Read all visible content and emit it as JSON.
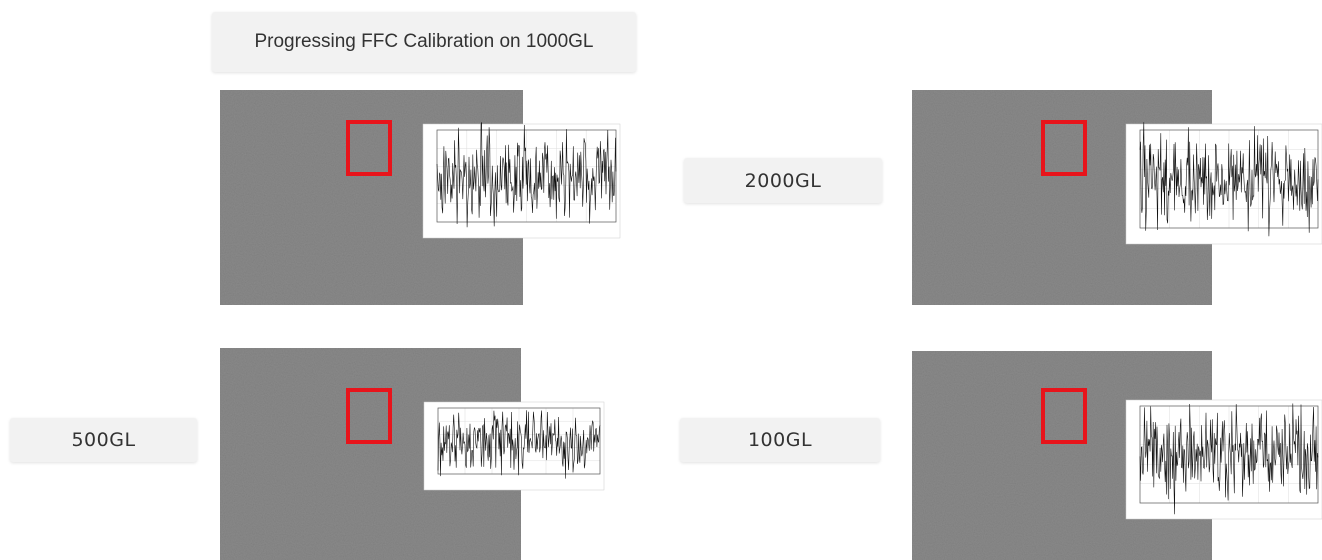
{
  "title": "Progressing FFC Calibration on 1000GL",
  "panels": [
    {
      "label": "2000GL"
    },
    {
      "label": "500GL"
    },
    {
      "label": "100GL"
    }
  ]
}
